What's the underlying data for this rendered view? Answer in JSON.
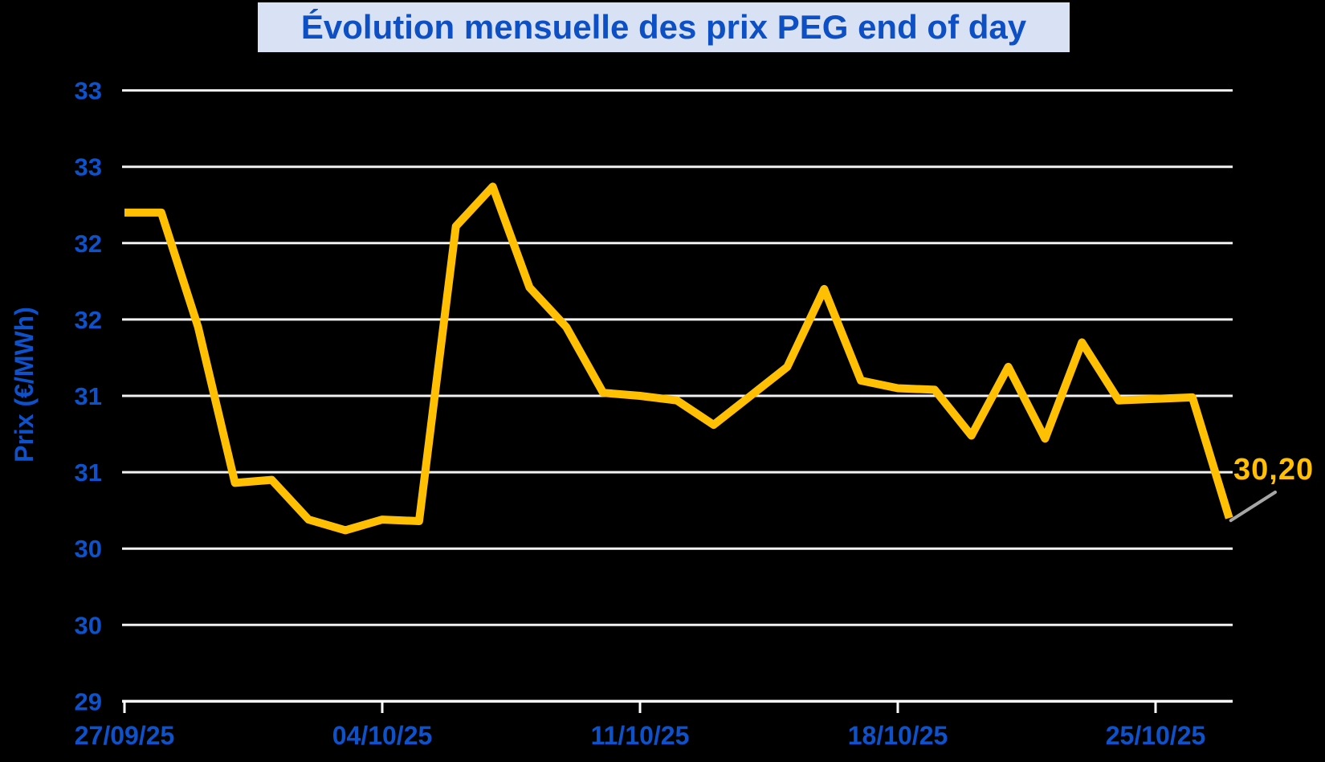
{
  "colors": {
    "background": "#000000",
    "line": "#FFC003",
    "point_label_text": "#FFC003",
    "leader_line": "#A6A6A6",
    "gridline": "#F2F2F2",
    "axis_line": "#FFFFFF",
    "axis_text": "#0D51CB",
    "title_text": "#0D50C5",
    "title_background": "#D9E2F4"
  },
  "chart_data": {
    "type": "line",
    "title": "Évolution mensuelle des prix PEG end of day",
    "xlabel": "",
    "ylabel": "Prix (€/MWh)",
    "ylim": [
      29,
      33
    ],
    "ytick_step": 0.5,
    "ytick_display_labels": [
      "33",
      "33",
      "32",
      "32",
      "31",
      "31",
      "30",
      "30",
      "29"
    ],
    "grid": true,
    "legend": false,
    "xtick_labels": [
      "27/09/25",
      "04/10/25",
      "11/10/25",
      "18/10/25",
      "25/10/25"
    ],
    "xtick_indices": [
      0,
      7,
      14,
      21,
      28
    ],
    "x_dates": [
      "27/09/25",
      "28/09/25",
      "29/09/25",
      "30/09/25",
      "01/10/25",
      "02/10/25",
      "03/10/25",
      "04/10/25",
      "05/10/25",
      "06/10/25",
      "07/10/25",
      "08/10/25",
      "09/10/25",
      "10/10/25",
      "11/10/25",
      "12/10/25",
      "13/10/25",
      "14/10/25",
      "15/10/25",
      "16/10/25",
      "17/10/25",
      "18/10/25",
      "19/10/25",
      "20/10/25",
      "21/10/25",
      "22/10/25",
      "23/10/25",
      "24/10/25",
      "25/10/25",
      "26/10/25",
      "27/10/25"
    ],
    "series": [
      {
        "name": "PEG end of day",
        "values": [
          32.2,
          32.2,
          31.45,
          30.43,
          30.45,
          30.19,
          30.12,
          30.19,
          30.18,
          32.11,
          32.37,
          31.71,
          31.45,
          31.02,
          31.0,
          30.97,
          30.81,
          31.0,
          31.19,
          31.7,
          31.1,
          31.05,
          31.04,
          30.74,
          31.19,
          30.72,
          31.35,
          30.97,
          30.98,
          30.99,
          30.2
        ]
      }
    ],
    "last_point_label": "30,20",
    "last_point_value": 30.2
  }
}
